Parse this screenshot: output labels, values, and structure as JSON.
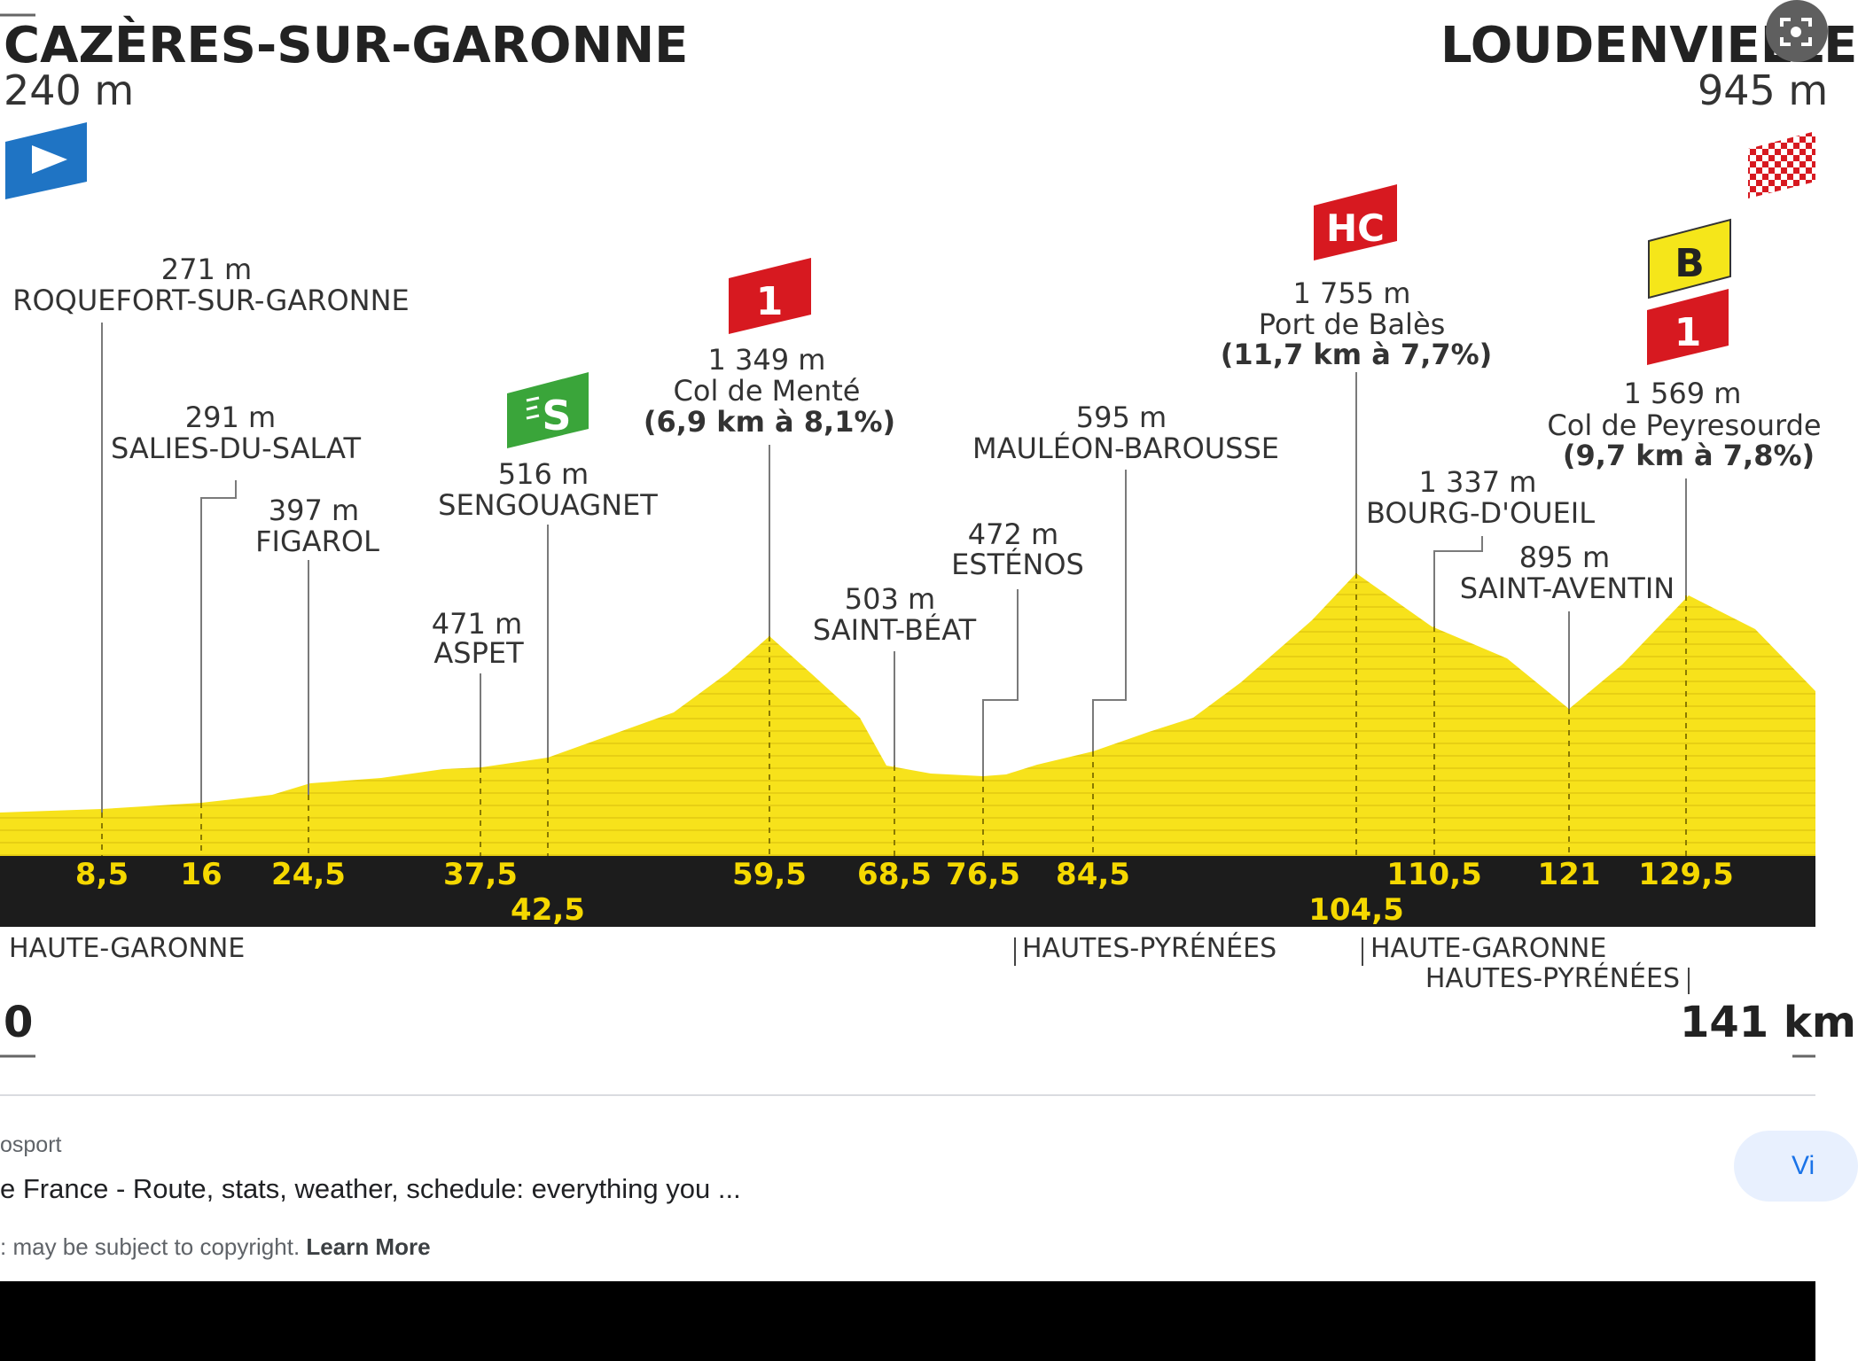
{
  "profile": {
    "start": {
      "name": "CAZÈRES-SUR-GARONNE",
      "altitude": "240 m"
    },
    "finish": {
      "name": "LOUDENVIELLE",
      "altitude": "945 m"
    },
    "distance_start": "0",
    "distance_end": "141 km",
    "points": [
      {
        "altitude": "271 m",
        "name": "ROQUEFORT-SUR-GARONNE"
      },
      {
        "altitude": "291 m",
        "name": "SALIES-DU-SALAT"
      },
      {
        "altitude": "397 m",
        "name": "FIGAROL"
      },
      {
        "altitude": "471 m",
        "name": "ASPET"
      },
      {
        "altitude": "516 m",
        "name": "SENGOUAGNET"
      },
      {
        "altitude": "1 349 m",
        "name": "Col de Menté",
        "detail": "(6,9 km à 8,1%)"
      },
      {
        "altitude": "503 m",
        "name": "SAINT-BÉAT"
      },
      {
        "altitude": "472 m",
        "name": "ESTÉNOS"
      },
      {
        "altitude": "595 m",
        "name": "MAULÉON-BAROUSSE"
      },
      {
        "altitude": "1 755 m",
        "name": "Port de Balès",
        "detail": "(11,7 km à 7,7%)"
      },
      {
        "altitude": "1 337 m",
        "name": "BOURG-D'OUEIL"
      },
      {
        "altitude": "895 m",
        "name": "SAINT-AVENTIN"
      },
      {
        "altitude": "1 569 m",
        "name": "Col de Peyresourde",
        "detail": "(9,7 km à 7,8%)"
      }
    ],
    "km_marks": [
      "8,5",
      "16",
      "24,5",
      "37,5",
      "42,5",
      "59,5",
      "68,5",
      "76,5",
      "84,5",
      "104,5",
      "110,5",
      "121",
      "129,5"
    ],
    "badges": {
      "cat1": "1",
      "hc": "HC",
      "bonus": "B",
      "sprint": "S"
    },
    "regions": [
      "HAUTE-GARONNE",
      "HAUTES-PYRÉNÉES",
      "HAUTE-GARONNE",
      "HAUTES-PYRÉNÉES"
    ],
    "colors": {
      "terrain": "#f7e21b",
      "band": "#1c1c1c",
      "km_text": "#f5d800",
      "climb_red": "#d71920",
      "sprint_green": "#3aa53a",
      "start_blue": "#1f74c4"
    }
  },
  "caption": {
    "source": "osport",
    "title": "e France - Route, stats, weather, schedule: everything you ...",
    "copyright": ": may be subject to copyright.",
    "learn_more": "Learn More",
    "visit_label": "Vi"
  },
  "icons": {
    "lens": "lens-icon"
  }
}
